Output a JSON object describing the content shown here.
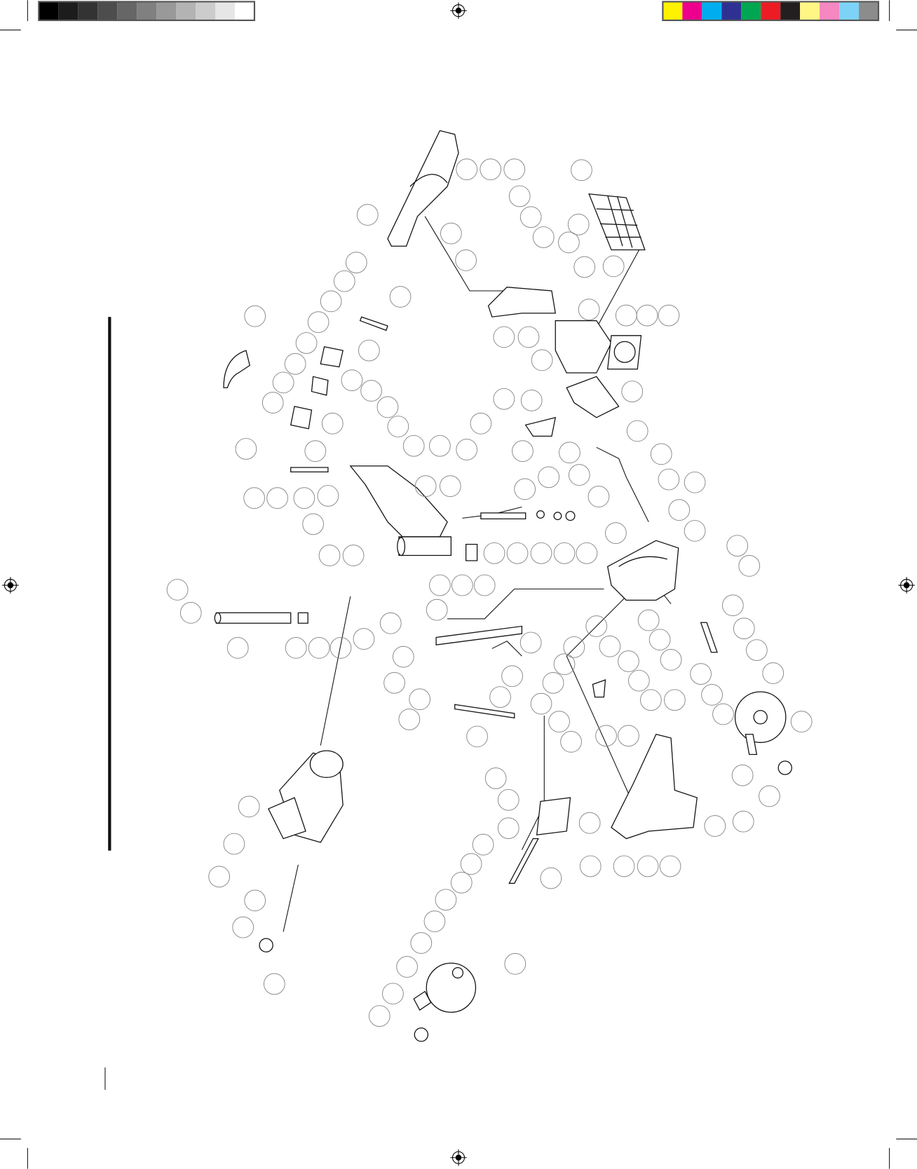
{
  "print_marks": {
    "grayscale_swatches": [
      "#000000",
      "#1c1c1c",
      "#333333",
      "#4d4d4d",
      "#666666",
      "#808080",
      "#999999",
      "#b3b3b3",
      "#cccccc",
      "#e6e6e6",
      "#ffffff"
    ],
    "color_swatches": [
      "#fff200",
      "#ec008c",
      "#00aeef",
      "#2e3192",
      "#00a651",
      "#ed1c24",
      "#231f20",
      "#fff685",
      "#f587c1",
      "#7dd3f7",
      "#8c8c8c"
    ],
    "swatch_border": "#555555"
  },
  "diagram": {
    "type": "exploded parts diagram",
    "line_color": "#111111",
    "balloon_color": "#8a8a8a",
    "balloon_labels": []
  }
}
